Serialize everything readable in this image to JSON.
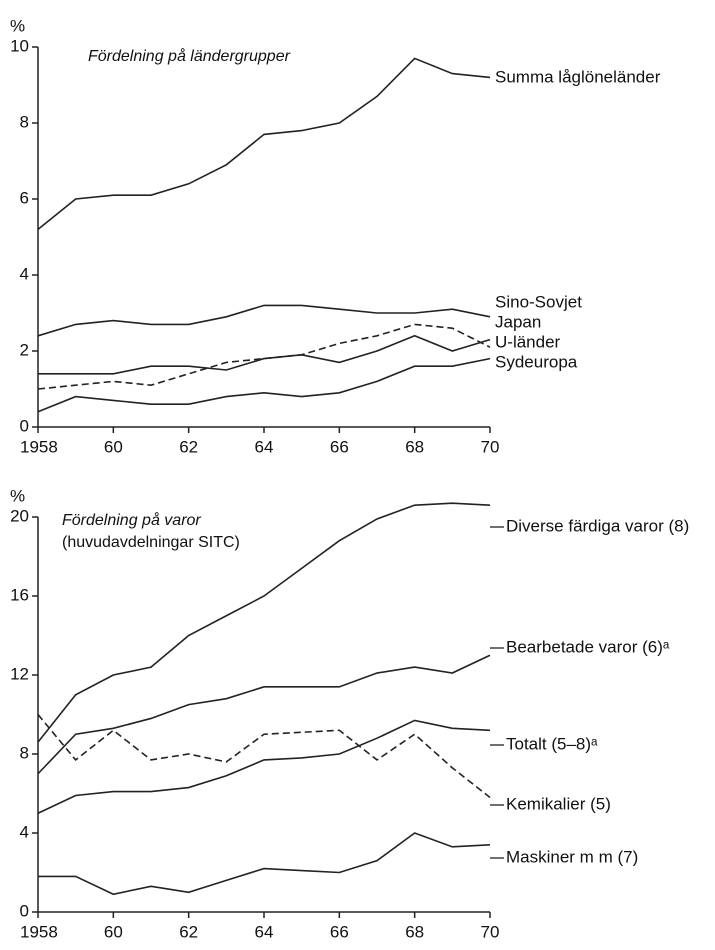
{
  "chart_data": [
    {
      "type": "line",
      "title": "Fördelning på ländergrupper",
      "y_label": "%",
      "x": [
        1958,
        1959,
        1960,
        1961,
        1962,
        1963,
        1964,
        1965,
        1966,
        1967,
        1968,
        1969,
        1970
      ],
      "xlim": [
        1958,
        1970
      ],
      "xticks": [
        1958,
        {
          "value": 1960,
          "label": "60"
        },
        {
          "value": 1962,
          "label": "62"
        },
        {
          "value": 1964,
          "label": "64"
        },
        {
          "value": 1966,
          "label": "66"
        },
        {
          "value": 1968,
          "label": "68"
        },
        {
          "value": 1970,
          "label": "70"
        }
      ],
      "ylim": [
        0,
        10
      ],
      "yticks": [
        0,
        2,
        4,
        6,
        8,
        10
      ],
      "series": [
        {
          "name": "Summa låglöneländer",
          "color": "#222",
          "style": "solid",
          "values": [
            5.2,
            6.0,
            6.1,
            6.1,
            6.4,
            6.9,
            7.7,
            7.8,
            8.0,
            8.7,
            9.7,
            9.3,
            9.2
          ]
        },
        {
          "name": "Sino-Sovjet",
          "color": "#222",
          "style": "solid",
          "values": [
            2.4,
            2.7,
            2.8,
            2.7,
            2.7,
            2.9,
            3.2,
            3.2,
            3.1,
            3.0,
            3.0,
            3.1,
            2.9
          ]
        },
        {
          "name": "Japan",
          "color": "#222",
          "style": "dashed",
          "values": [
            1.0,
            1.1,
            1.2,
            1.1,
            1.4,
            1.7,
            1.8,
            1.9,
            2.2,
            2.4,
            2.7,
            2.6,
            2.1
          ]
        },
        {
          "name": "U-länder",
          "color": "#222",
          "style": "solid",
          "values": [
            1.4,
            1.4,
            1.4,
            1.6,
            1.6,
            1.5,
            1.8,
            1.9,
            1.7,
            2.0,
            2.4,
            2.0,
            2.3
          ]
        },
        {
          "name": "Sydeuropa",
          "color": "#222",
          "style": "solid",
          "values": [
            0.4,
            0.8,
            0.7,
            0.6,
            0.6,
            0.8,
            0.9,
            0.8,
            0.9,
            1.2,
            1.6,
            1.6,
            1.8
          ]
        }
      ]
    },
    {
      "type": "line",
      "title": "Fördelning på varor",
      "subtitle": "(huvudavdelningar SITC)",
      "y_label": "%",
      "x": [
        1958,
        1959,
        1960,
        1961,
        1962,
        1963,
        1964,
        1965,
        1966,
        1967,
        1968,
        1969,
        1970
      ],
      "xlim": [
        1958,
        1970
      ],
      "xticks": [
        1958,
        {
          "value": 1960,
          "label": "60"
        },
        {
          "value": 1962,
          "label": "62"
        },
        {
          "value": 1964,
          "label": "64"
        },
        {
          "value": 1966,
          "label": "66"
        },
        {
          "value": 1968,
          "label": "68"
        },
        {
          "value": 1970,
          "label": "70"
        }
      ],
      "ylim": [
        0,
        20
      ],
      "yticks": [
        0,
        4,
        8,
        12,
        16,
        20
      ],
      "series": [
        {
          "name": "Diverse färdiga varor (8)",
          "color": "#222",
          "style": "solid",
          "values": [
            8.6,
            11.0,
            12.0,
            12.4,
            14.0,
            15.0,
            16.0,
            17.4,
            18.8,
            19.9,
            20.6,
            20.7,
            20.6
          ]
        },
        {
          "name": "Bearbetade varor (6)ᵃ",
          "color": "#222",
          "style": "solid",
          "values": [
            7.0,
            9.0,
            9.3,
            9.8,
            10.5,
            10.8,
            11.4,
            11.4,
            11.4,
            12.1,
            12.4,
            12.1,
            13.0
          ]
        },
        {
          "name": "Totalt (5–8)ᵃ",
          "color": "#222",
          "style": "solid",
          "values": [
            5.0,
            5.9,
            6.1,
            6.1,
            6.3,
            6.9,
            7.7,
            7.8,
            8.0,
            8.8,
            9.7,
            9.3,
            9.2
          ]
        },
        {
          "name": "Kemikalier (5)",
          "color": "#222",
          "style": "dashed",
          "values": [
            10.0,
            7.7,
            9.2,
            7.7,
            8.0,
            7.6,
            9.0,
            9.1,
            9.2,
            7.7,
            9.0,
            7.3,
            5.8
          ]
        },
        {
          "name": "Maskiner m m (7)",
          "color": "#222",
          "style": "solid",
          "values": [
            1.8,
            1.8,
            0.9,
            1.3,
            1.0,
            1.6,
            2.2,
            2.1,
            2.0,
            2.6,
            4.0,
            3.3,
            3.4
          ]
        }
      ]
    }
  ]
}
